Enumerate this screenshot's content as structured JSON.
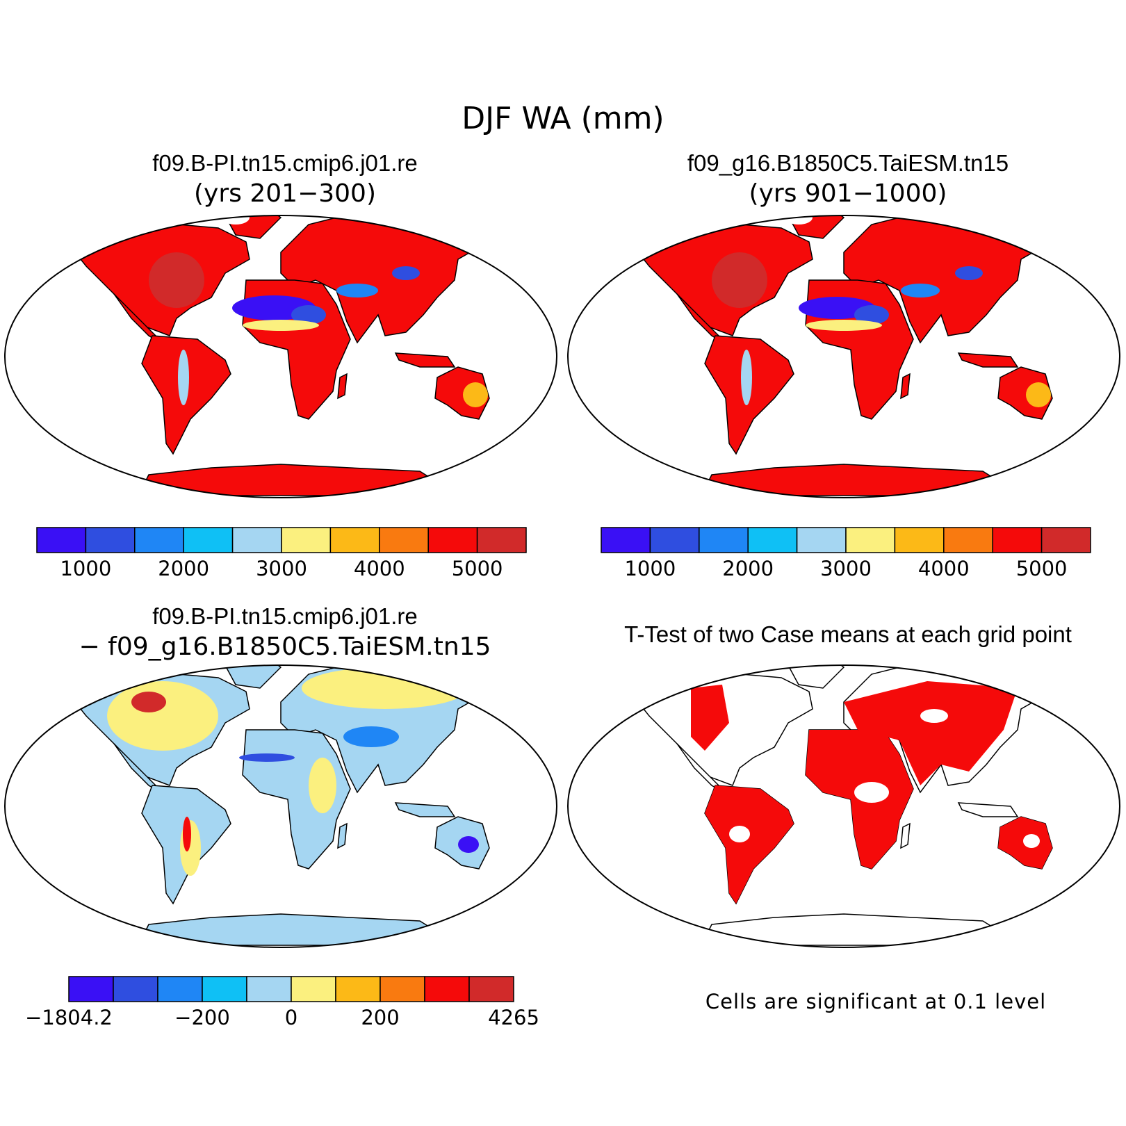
{
  "figure": {
    "title": "DJF WA (mm)"
  },
  "panels": [
    {
      "id": "top-left",
      "title": "f09.B-PI.tn15.cmip6.j01.re",
      "subtitle": "(yrs 201−300)",
      "fill": "absolute"
    },
    {
      "id": "top-right",
      "title": "f09_g16.B1850C5.TaiESM.tn15",
      "subtitle": "(yrs 901−1000)",
      "fill": "absolute"
    },
    {
      "id": "bottom-left",
      "title": "f09.B-PI.tn15.cmip6.j01.re",
      "subtitle": "− f09_g16.B1850C5.TaiESM.tn15",
      "fill": "difference"
    },
    {
      "id": "bottom-right",
      "title": "T-Test of two Case means at each grid point",
      "subtitle": "",
      "fill": "significance"
    }
  ],
  "colorbars": {
    "absolute": {
      "colors": [
        "#3a10f5",
        "#2f4ee0",
        "#1f86f5",
        "#0fc0f5",
        "#a5d6f2",
        "#fbf07f",
        "#fcb917",
        "#f97a10",
        "#f50a0a",
        "#d12a2a"
      ],
      "tick_labels": [
        "1000",
        "2000",
        "3000",
        "4000",
        "5000"
      ]
    },
    "difference": {
      "colors": [
        "#3a10f5",
        "#2f4ee0",
        "#1f86f5",
        "#0fc0f5",
        "#a5d6f2",
        "#fbf07f",
        "#fcb917",
        "#f97a10",
        "#f50a0a",
        "#d12a2a"
      ],
      "tick_labels": [
        "−1804.2",
        "−200",
        "0",
        "200",
        "4265"
      ]
    }
  },
  "significance_note": "Cells are significant at 0.1 level",
  "significance_color": "#f50a0a"
}
